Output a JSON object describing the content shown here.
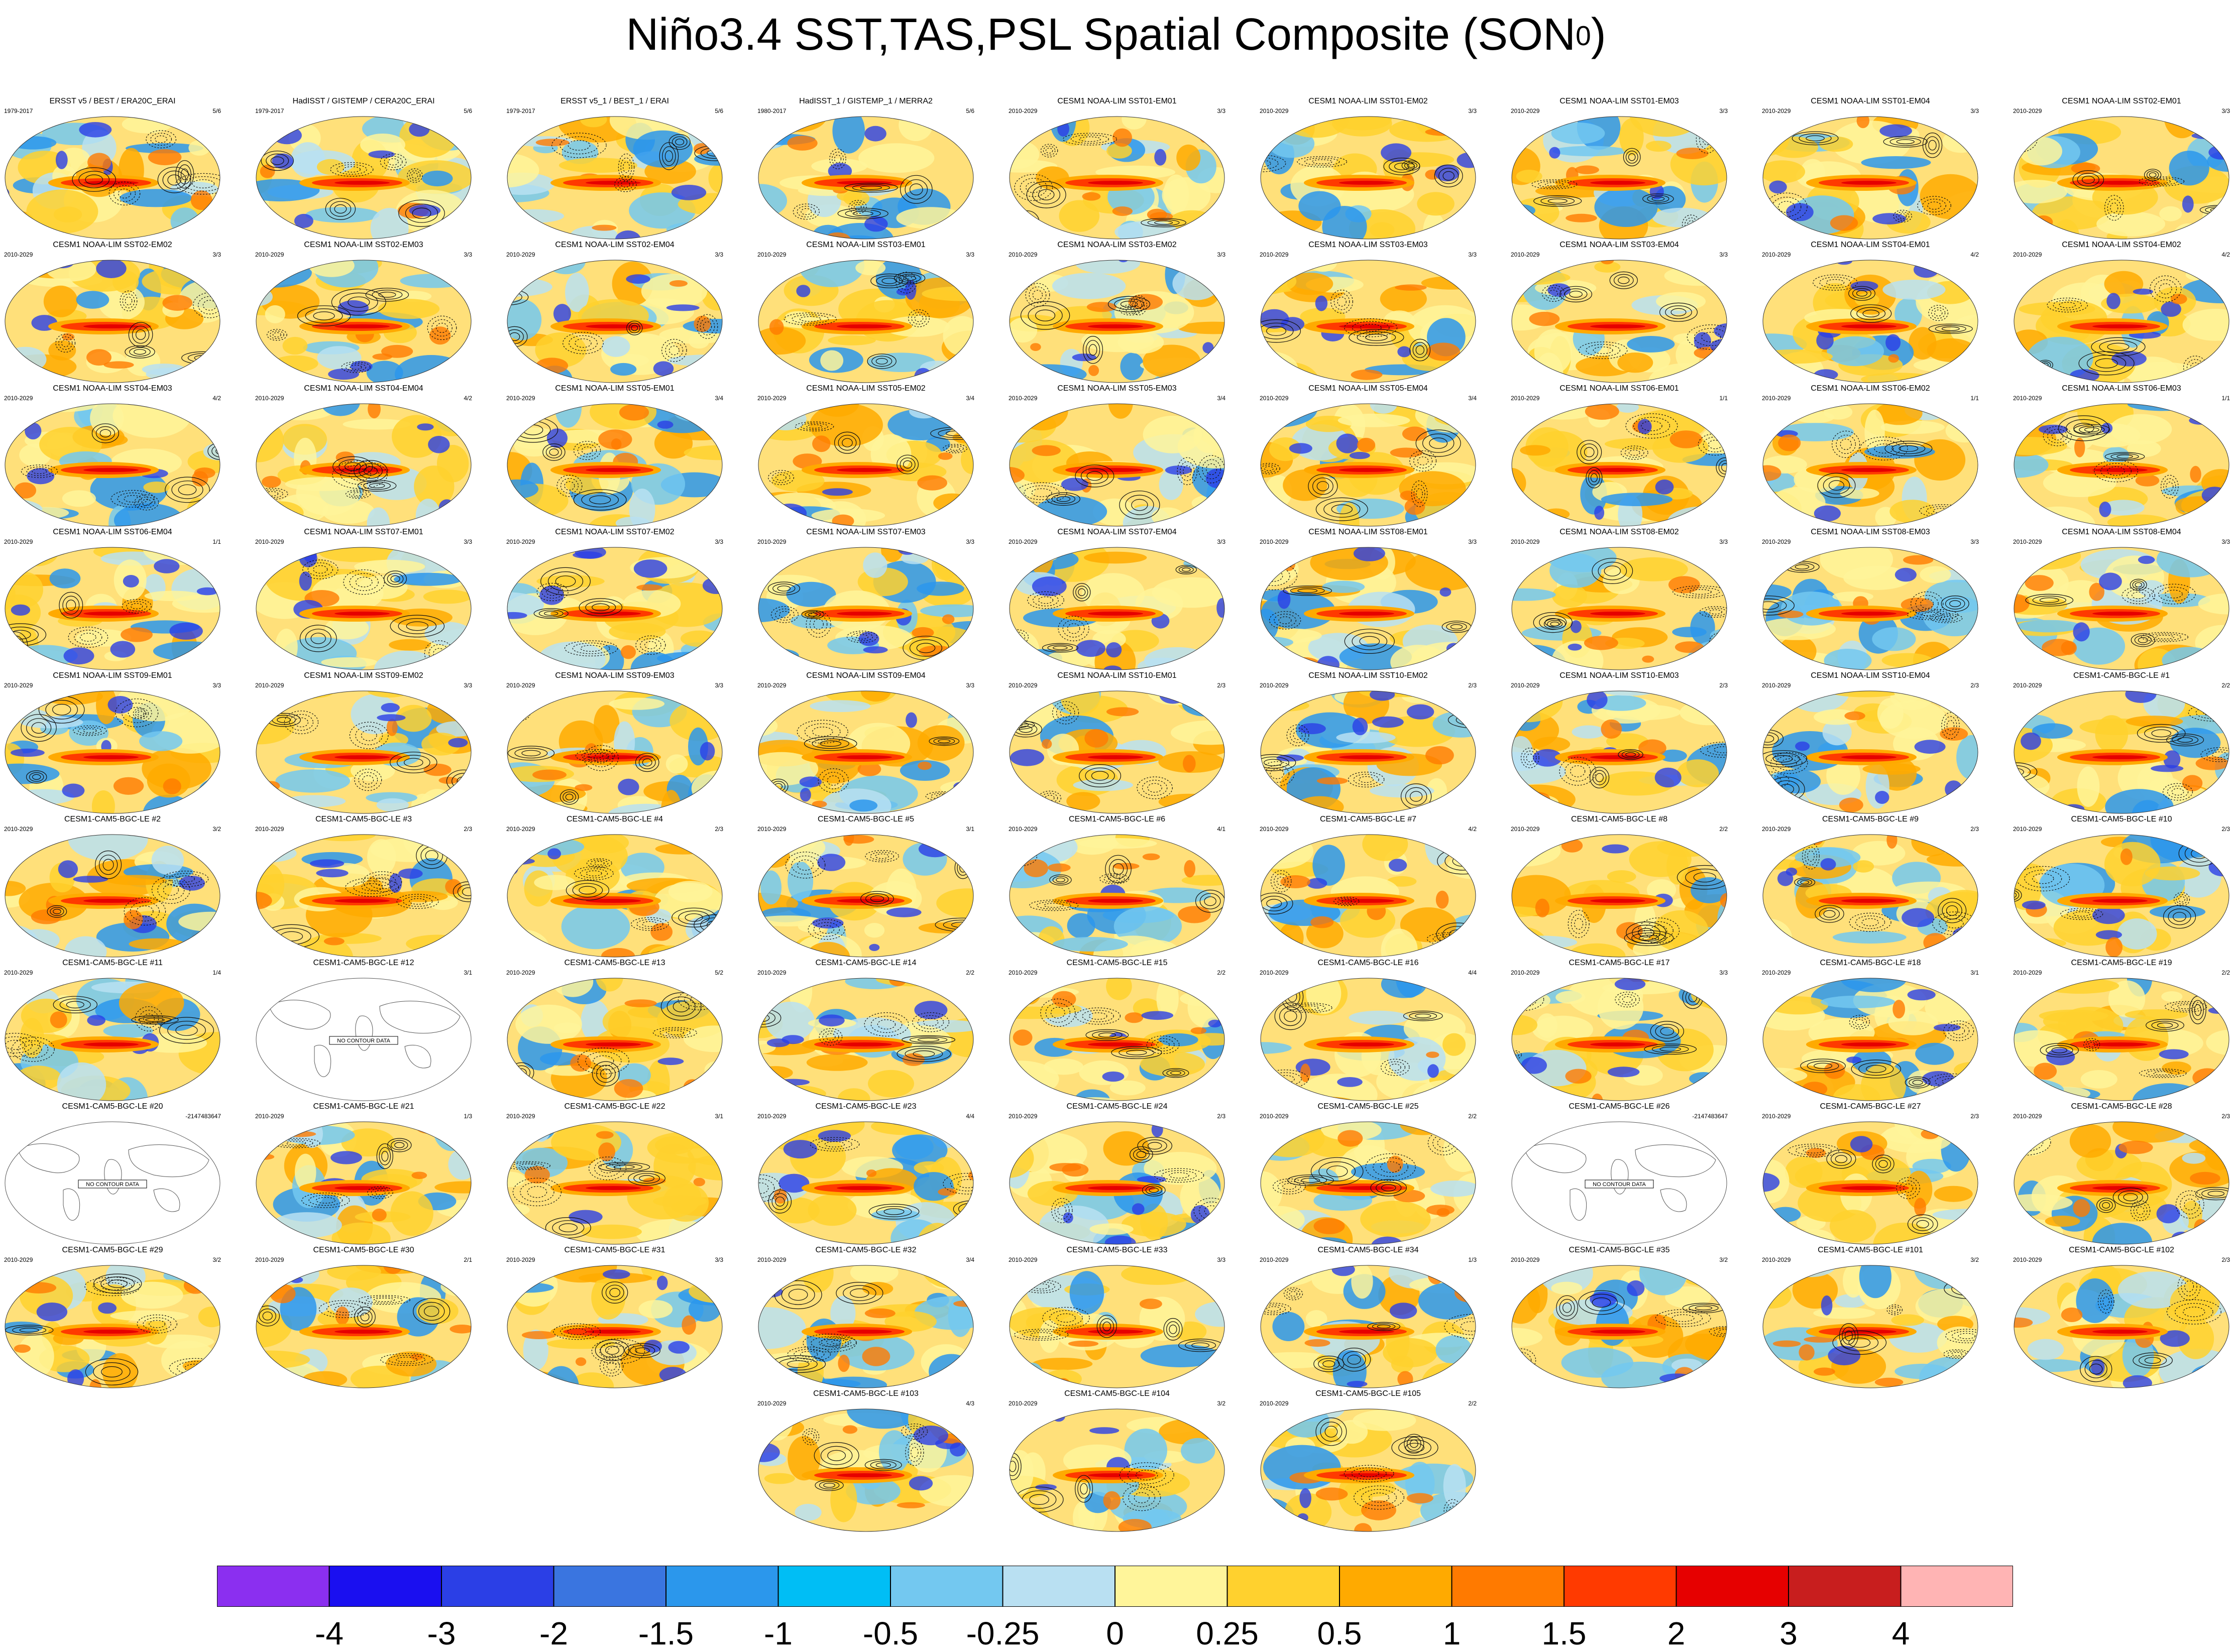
{
  "title": {
    "main": "Niño3.4 SST,TAS,PSL Spatial Composite (SON",
    "sup": "0",
    "tail": ")"
  },
  "no_data_label": "NO CONTOUR DATA",
  "panels": [
    {
      "title": "ERSST v5 / BEST / ERA20C_ERAI",
      "years": "1979-2017",
      "ratio": "5/6",
      "type": "obs"
    },
    {
      "title": "HadISST / GISTEMP / CERA20C_ERAI",
      "years": "1979-2017",
      "ratio": "5/6",
      "type": "obs"
    },
    {
      "title": "ERSST v5_1 / BEST_1 / ERAI",
      "years": "1979-2017",
      "ratio": "5/6",
      "type": "obs"
    },
    {
      "title": "HadISST_1 / GISTEMP_1 / MERRA2",
      "years": "1980-2017",
      "ratio": "5/6",
      "type": "obs"
    },
    {
      "title": "CESM1 NOAA-LIM SST01-EM01",
      "years": "2010-2029",
      "ratio": "3/3",
      "type": "model"
    },
    {
      "title": "CESM1 NOAA-LIM SST01-EM02",
      "years": "2010-2029",
      "ratio": "3/3",
      "type": "model"
    },
    {
      "title": "CESM1 NOAA-LIM SST01-EM03",
      "years": "2010-2029",
      "ratio": "3/3",
      "type": "model"
    },
    {
      "title": "CESM1 NOAA-LIM SST01-EM04",
      "years": "2010-2029",
      "ratio": "3/3",
      "type": "model"
    },
    {
      "title": "CESM1 NOAA-LIM SST02-EM01",
      "years": "2010-2029",
      "ratio": "3/3",
      "type": "model"
    },
    {
      "title": "CESM1 NOAA-LIM SST02-EM02",
      "years": "2010-2029",
      "ratio": "3/3",
      "type": "model"
    },
    {
      "title": "CESM1 NOAA-LIM SST02-EM03",
      "years": "2010-2029",
      "ratio": "3/3",
      "type": "model"
    },
    {
      "title": "CESM1 NOAA-LIM SST02-EM04",
      "years": "2010-2029",
      "ratio": "3/3",
      "type": "model"
    },
    {
      "title": "CESM1 NOAA-LIM SST03-EM01",
      "years": "2010-2029",
      "ratio": "3/3",
      "type": "model"
    },
    {
      "title": "CESM1 NOAA-LIM SST03-EM02",
      "years": "2010-2029",
      "ratio": "3/3",
      "type": "model"
    },
    {
      "title": "CESM1 NOAA-LIM SST03-EM03",
      "years": "2010-2029",
      "ratio": "3/3",
      "type": "model"
    },
    {
      "title": "CESM1 NOAA-LIM SST03-EM04",
      "years": "2010-2029",
      "ratio": "3/3",
      "type": "model"
    },
    {
      "title": "CESM1 NOAA-LIM SST04-EM01",
      "years": "2010-2029",
      "ratio": "4/2",
      "type": "model"
    },
    {
      "title": "CESM1 NOAA-LIM SST04-EM02",
      "years": "2010-2029",
      "ratio": "4/2",
      "type": "model"
    },
    {
      "title": "CESM1 NOAA-LIM SST04-EM03",
      "years": "2010-2029",
      "ratio": "4/2",
      "type": "model"
    },
    {
      "title": "CESM1 NOAA-LIM SST04-EM04",
      "years": "2010-2029",
      "ratio": "4/2",
      "type": "model"
    },
    {
      "title": "CESM1 NOAA-LIM SST05-EM01",
      "years": "2010-2029",
      "ratio": "3/4",
      "type": "model"
    },
    {
      "title": "CESM1 NOAA-LIM SST05-EM02",
      "years": "2010-2029",
      "ratio": "3/4",
      "type": "model"
    },
    {
      "title": "CESM1 NOAA-LIM SST05-EM03",
      "years": "2010-2029",
      "ratio": "3/4",
      "type": "model"
    },
    {
      "title": "CESM1 NOAA-LIM SST05-EM04",
      "years": "2010-2029",
      "ratio": "3/4",
      "type": "model"
    },
    {
      "title": "CESM1 NOAA-LIM SST06-EM01",
      "years": "2010-2029",
      "ratio": "1/1",
      "type": "model"
    },
    {
      "title": "CESM1 NOAA-LIM SST06-EM02",
      "years": "2010-2029",
      "ratio": "1/1",
      "type": "model"
    },
    {
      "title": "CESM1 NOAA-LIM SST06-EM03",
      "years": "2010-2029",
      "ratio": "1/1",
      "type": "model"
    },
    {
      "title": "CESM1 NOAA-LIM SST06-EM04",
      "years": "2010-2029",
      "ratio": "1/1",
      "type": "model"
    },
    {
      "title": "CESM1 NOAA-LIM SST07-EM01",
      "years": "2010-2029",
      "ratio": "3/3",
      "type": "model"
    },
    {
      "title": "CESM1 NOAA-LIM SST07-EM02",
      "years": "2010-2029",
      "ratio": "3/3",
      "type": "model"
    },
    {
      "title": "CESM1 NOAA-LIM SST07-EM03",
      "years": "2010-2029",
      "ratio": "3/3",
      "type": "model"
    },
    {
      "title": "CESM1 NOAA-LIM SST07-EM04",
      "years": "2010-2029",
      "ratio": "3/3",
      "type": "model"
    },
    {
      "title": "CESM1 NOAA-LIM SST08-EM01",
      "years": "2010-2029",
      "ratio": "3/3",
      "type": "model"
    },
    {
      "title": "CESM1 NOAA-LIM SST08-EM02",
      "years": "2010-2029",
      "ratio": "3/3",
      "type": "model"
    },
    {
      "title": "CESM1 NOAA-LIM SST08-EM03",
      "years": "2010-2029",
      "ratio": "3/3",
      "type": "model"
    },
    {
      "title": "CESM1 NOAA-LIM SST08-EM04",
      "years": "2010-2029",
      "ratio": "3/3",
      "type": "model"
    },
    {
      "title": "CESM1 NOAA-LIM SST09-EM01",
      "years": "2010-2029",
      "ratio": "3/3",
      "type": "model"
    },
    {
      "title": "CESM1 NOAA-LIM SST09-EM02",
      "years": "2010-2029",
      "ratio": "3/3",
      "type": "model"
    },
    {
      "title": "CESM1 NOAA-LIM SST09-EM03",
      "years": "2010-2029",
      "ratio": "3/3",
      "type": "model"
    },
    {
      "title": "CESM1 NOAA-LIM SST09-EM04",
      "years": "2010-2029",
      "ratio": "3/3",
      "type": "model"
    },
    {
      "title": "CESM1 NOAA-LIM SST10-EM01",
      "years": "2010-2029",
      "ratio": "2/3",
      "type": "model"
    },
    {
      "title": "CESM1 NOAA-LIM SST10-EM02",
      "years": "2010-2029",
      "ratio": "2/3",
      "type": "model"
    },
    {
      "title": "CESM1 NOAA-LIM SST10-EM03",
      "years": "2010-2029",
      "ratio": "2/3",
      "type": "model"
    },
    {
      "title": "CESM1 NOAA-LIM SST10-EM04",
      "years": "2010-2029",
      "ratio": "2/3",
      "type": "model"
    },
    {
      "title": "CESM1-CAM5-BGC-LE #1",
      "years": "2010-2029",
      "ratio": "2/2",
      "type": "model"
    },
    {
      "title": "CESM1-CAM5-BGC-LE #2",
      "years": "2010-2029",
      "ratio": "3/2",
      "type": "model"
    },
    {
      "title": "CESM1-CAM5-BGC-LE #3",
      "years": "2010-2029",
      "ratio": "2/3",
      "type": "model"
    },
    {
      "title": "CESM1-CAM5-BGC-LE #4",
      "years": "2010-2029",
      "ratio": "2/3",
      "type": "model"
    },
    {
      "title": "CESM1-CAM5-BGC-LE #5",
      "years": "2010-2029",
      "ratio": "3/1",
      "type": "model"
    },
    {
      "title": "CESM1-CAM5-BGC-LE #6",
      "years": "2010-2029",
      "ratio": "4/1",
      "type": "model"
    },
    {
      "title": "CESM1-CAM5-BGC-LE #7",
      "years": "2010-2029",
      "ratio": "4/2",
      "type": "model"
    },
    {
      "title": "CESM1-CAM5-BGC-LE #8",
      "years": "2010-2029",
      "ratio": "2/2",
      "type": "model"
    },
    {
      "title": "CESM1-CAM5-BGC-LE #9",
      "years": "2010-2029",
      "ratio": "2/3",
      "type": "model"
    },
    {
      "title": "CESM1-CAM5-BGC-LE #10",
      "years": "2010-2029",
      "ratio": "2/3",
      "type": "model"
    },
    {
      "title": "CESM1-CAM5-BGC-LE #11",
      "years": "2010-2029",
      "ratio": "1/4",
      "type": "model"
    },
    {
      "title": "CESM1-CAM5-BGC-LE #12",
      "years": "",
      "ratio": "3/1",
      "type": "nodata"
    },
    {
      "title": "CESM1-CAM5-BGC-LE #13",
      "years": "2010-2029",
      "ratio": "5/2",
      "type": "model"
    },
    {
      "title": "CESM1-CAM5-BGC-LE #14",
      "years": "2010-2029",
      "ratio": "2/2",
      "type": "model"
    },
    {
      "title": "CESM1-CAM5-BGC-LE #15",
      "years": "2010-2029",
      "ratio": "2/2",
      "type": "model"
    },
    {
      "title": "CESM1-CAM5-BGC-LE #16",
      "years": "2010-2029",
      "ratio": "4/4",
      "type": "model"
    },
    {
      "title": "CESM1-CAM5-BGC-LE #17",
      "years": "2010-2029",
      "ratio": "3/3",
      "type": "model"
    },
    {
      "title": "CESM1-CAM5-BGC-LE #18",
      "years": "2010-2029",
      "ratio": "3/1",
      "type": "model"
    },
    {
      "title": "CESM1-CAM5-BGC-LE #19",
      "years": "2010-2029",
      "ratio": "2/2",
      "type": "model"
    },
    {
      "title": "CESM1-CAM5-BGC-LE #20",
      "years": "",
      "ratio": "-2147483647",
      "type": "nodata"
    },
    {
      "title": "CESM1-CAM5-BGC-LE #21",
      "years": "2010-2029",
      "ratio": "1/3",
      "type": "model"
    },
    {
      "title": "CESM1-CAM5-BGC-LE #22",
      "years": "2010-2029",
      "ratio": "3/1",
      "type": "model"
    },
    {
      "title": "CESM1-CAM5-BGC-LE #23",
      "years": "2010-2029",
      "ratio": "4/4",
      "type": "model"
    },
    {
      "title": "CESM1-CAM5-BGC-LE #24",
      "years": "2010-2029",
      "ratio": "2/3",
      "type": "model"
    },
    {
      "title": "CESM1-CAM5-BGC-LE #25",
      "years": "2010-2029",
      "ratio": "2/2",
      "type": "model"
    },
    {
      "title": "CESM1-CAM5-BGC-LE #26",
      "years": "",
      "ratio": "-2147483647",
      "type": "nodata"
    },
    {
      "title": "CESM1-CAM5-BGC-LE #27",
      "years": "2010-2029",
      "ratio": "2/3",
      "type": "model"
    },
    {
      "title": "CESM1-CAM5-BGC-LE #28",
      "years": "2010-2029",
      "ratio": "2/3",
      "type": "model"
    },
    {
      "title": "CESM1-CAM5-BGC-LE #29",
      "years": "2010-2029",
      "ratio": "3/2",
      "type": "model"
    },
    {
      "title": "CESM1-CAM5-BGC-LE #30",
      "years": "2010-2029",
      "ratio": "2/1",
      "type": "model"
    },
    {
      "title": "CESM1-CAM5-BGC-LE #31",
      "years": "2010-2029",
      "ratio": "3/3",
      "type": "model"
    },
    {
      "title": "CESM1-CAM5-BGC-LE #32",
      "years": "2010-2029",
      "ratio": "3/4",
      "type": "model"
    },
    {
      "title": "CESM1-CAM5-BGC-LE #33",
      "years": "2010-2029",
      "ratio": "3/3",
      "type": "model"
    },
    {
      "title": "CESM1-CAM5-BGC-LE #34",
      "years": "2010-2029",
      "ratio": "1/3",
      "type": "model"
    },
    {
      "title": "CESM1-CAM5-BGC-LE #35",
      "years": "2010-2029",
      "ratio": "3/2",
      "type": "model"
    },
    {
      "title": "CESM1-CAM5-BGC-LE #101",
      "years": "2010-2029",
      "ratio": "3/2",
      "type": "model"
    },
    {
      "title": "CESM1-CAM5-BGC-LE #102",
      "years": "2010-2029",
      "ratio": "2/3",
      "type": "model"
    },
    {
      "title": "CESM1-CAM5-BGC-LE #103",
      "years": "2010-2029",
      "ratio": "4/3",
      "type": "model"
    },
    {
      "title": "CESM1-CAM5-BGC-LE #104",
      "years": "2010-2029",
      "ratio": "3/2",
      "type": "model"
    },
    {
      "title": "CESM1-CAM5-BGC-LE #105",
      "years": "2010-2029",
      "ratio": "2/2",
      "type": "model"
    }
  ],
  "colorbar": {
    "labels": [
      "-4",
      "-3",
      "-2",
      "-1.5",
      "-1",
      "-0.5",
      "-0.25",
      "0",
      "0.25",
      "0.5",
      "1",
      "1.5",
      "2",
      "3",
      "4"
    ],
    "colors": [
      "#8b2ff0",
      "#1a0ff0",
      "#2b3fe6",
      "#3a75e0",
      "#2b97ec",
      "#00bef5",
      "#73c8f0",
      "#b9e0f2",
      "#fff59a",
      "#ffd12e",
      "#ffaa00",
      "#ff7a00",
      "#ff3a00",
      "#e60000",
      "#c81e1e",
      "#ffb4b4"
    ]
  }
}
